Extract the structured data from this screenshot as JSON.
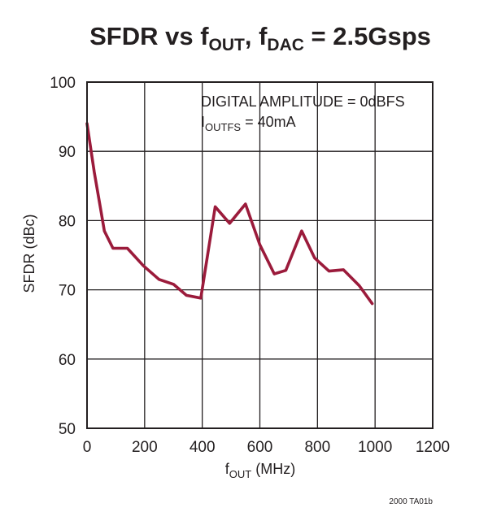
{
  "chart_data": {
    "type": "line",
    "title": {
      "parts": [
        {
          "text": "SFDR vs f",
          "sub": false
        },
        {
          "text": "OUT",
          "sub": true
        },
        {
          "text": ", f",
          "sub": false
        },
        {
          "text": "DAC",
          "sub": true
        },
        {
          "text": " = 2.5Gsps",
          "sub": false
        }
      ]
    },
    "xlabel": {
      "parts": [
        {
          "text": "f",
          "sub": false
        },
        {
          "text": "OUT",
          "sub": true
        },
        {
          "text": " (MHz)",
          "sub": false
        }
      ]
    },
    "ylabel": "SFDR (dBc)",
    "xlim": [
      0,
      1200
    ],
    "ylim": [
      50,
      100
    ],
    "xticks": [
      0,
      200,
      400,
      600,
      800,
      1000,
      1200
    ],
    "yticks": [
      50,
      60,
      70,
      80,
      90,
      100
    ],
    "grid": true,
    "annotations": [
      {
        "parts": [
          {
            "text": "DIGITAL AMPLITUDE = 0dBFS",
            "sub": false
          }
        ]
      },
      {
        "parts": [
          {
            "text": "I",
            "sub": false
          },
          {
            "text": "OUTFS",
            "sub": true
          },
          {
            "text": " = 40mA",
            "sub": false
          }
        ]
      }
    ],
    "series": [
      {
        "color": "#9b1b3b",
        "x": [
          0,
          25,
          50,
          60,
          90,
          140,
          195,
          250,
          300,
          345,
          395,
          445,
          495,
          550,
          600,
          650,
          690,
          745,
          790,
          840,
          890,
          945,
          990
        ],
        "y": [
          94,
          87,
          81,
          78.5,
          76,
          76,
          73.5,
          71.5,
          70.8,
          69.2,
          68.8,
          82,
          79.6,
          82.4,
          76.5,
          72.3,
          72.8,
          78.5,
          74.6,
          72.7,
          72.9,
          70.6,
          68
        ]
      }
    ]
  },
  "footnote": "2000 TA01b"
}
